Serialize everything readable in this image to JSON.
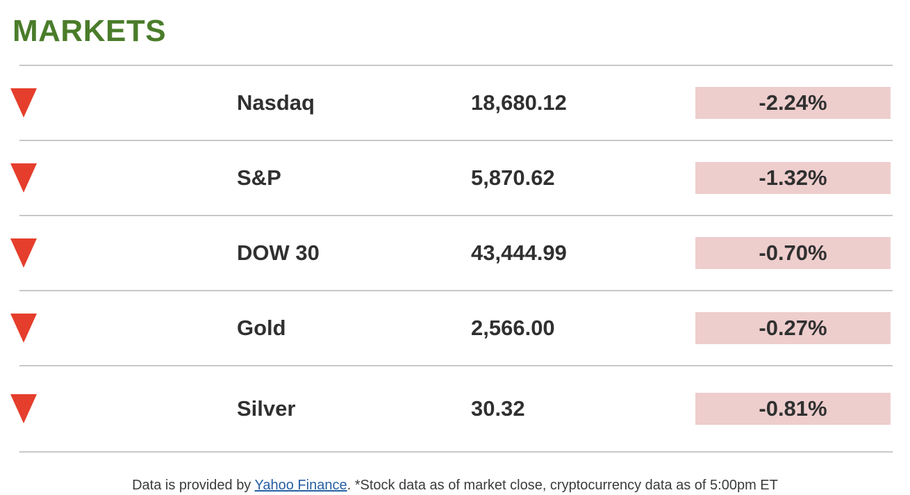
{
  "header": {
    "title": "MARKETS"
  },
  "colors": {
    "accent_green": "#4a7c2a",
    "negative_red": "#e53e2c",
    "negative_badge_bg": "#eecdcd",
    "text_dark": "#303030",
    "divider_gray": "#c8c8c8",
    "link_blue": "#2660a4"
  },
  "markets": {
    "rows": [
      {
        "name": "Nasdaq",
        "value": "18,680.12",
        "change": "-2.24%",
        "direction": "down"
      },
      {
        "name": "S&P",
        "value": "5,870.62",
        "change": "-1.32%",
        "direction": "down"
      },
      {
        "name": "DOW 30",
        "value": "43,444.99",
        "change": "-0.70%",
        "direction": "down"
      },
      {
        "name": "Gold",
        "value": "2,566.00",
        "change": "-0.27%",
        "direction": "down"
      },
      {
        "name": "Silver",
        "value": "30.32",
        "change": "-0.81%",
        "direction": "down"
      }
    ]
  },
  "footer": {
    "prefix": "Data is provided by ",
    "link_text": "Yahoo Finance",
    "suffix": ". *Stock data as of market close, cryptocurrency data as of 5:00pm ET"
  }
}
